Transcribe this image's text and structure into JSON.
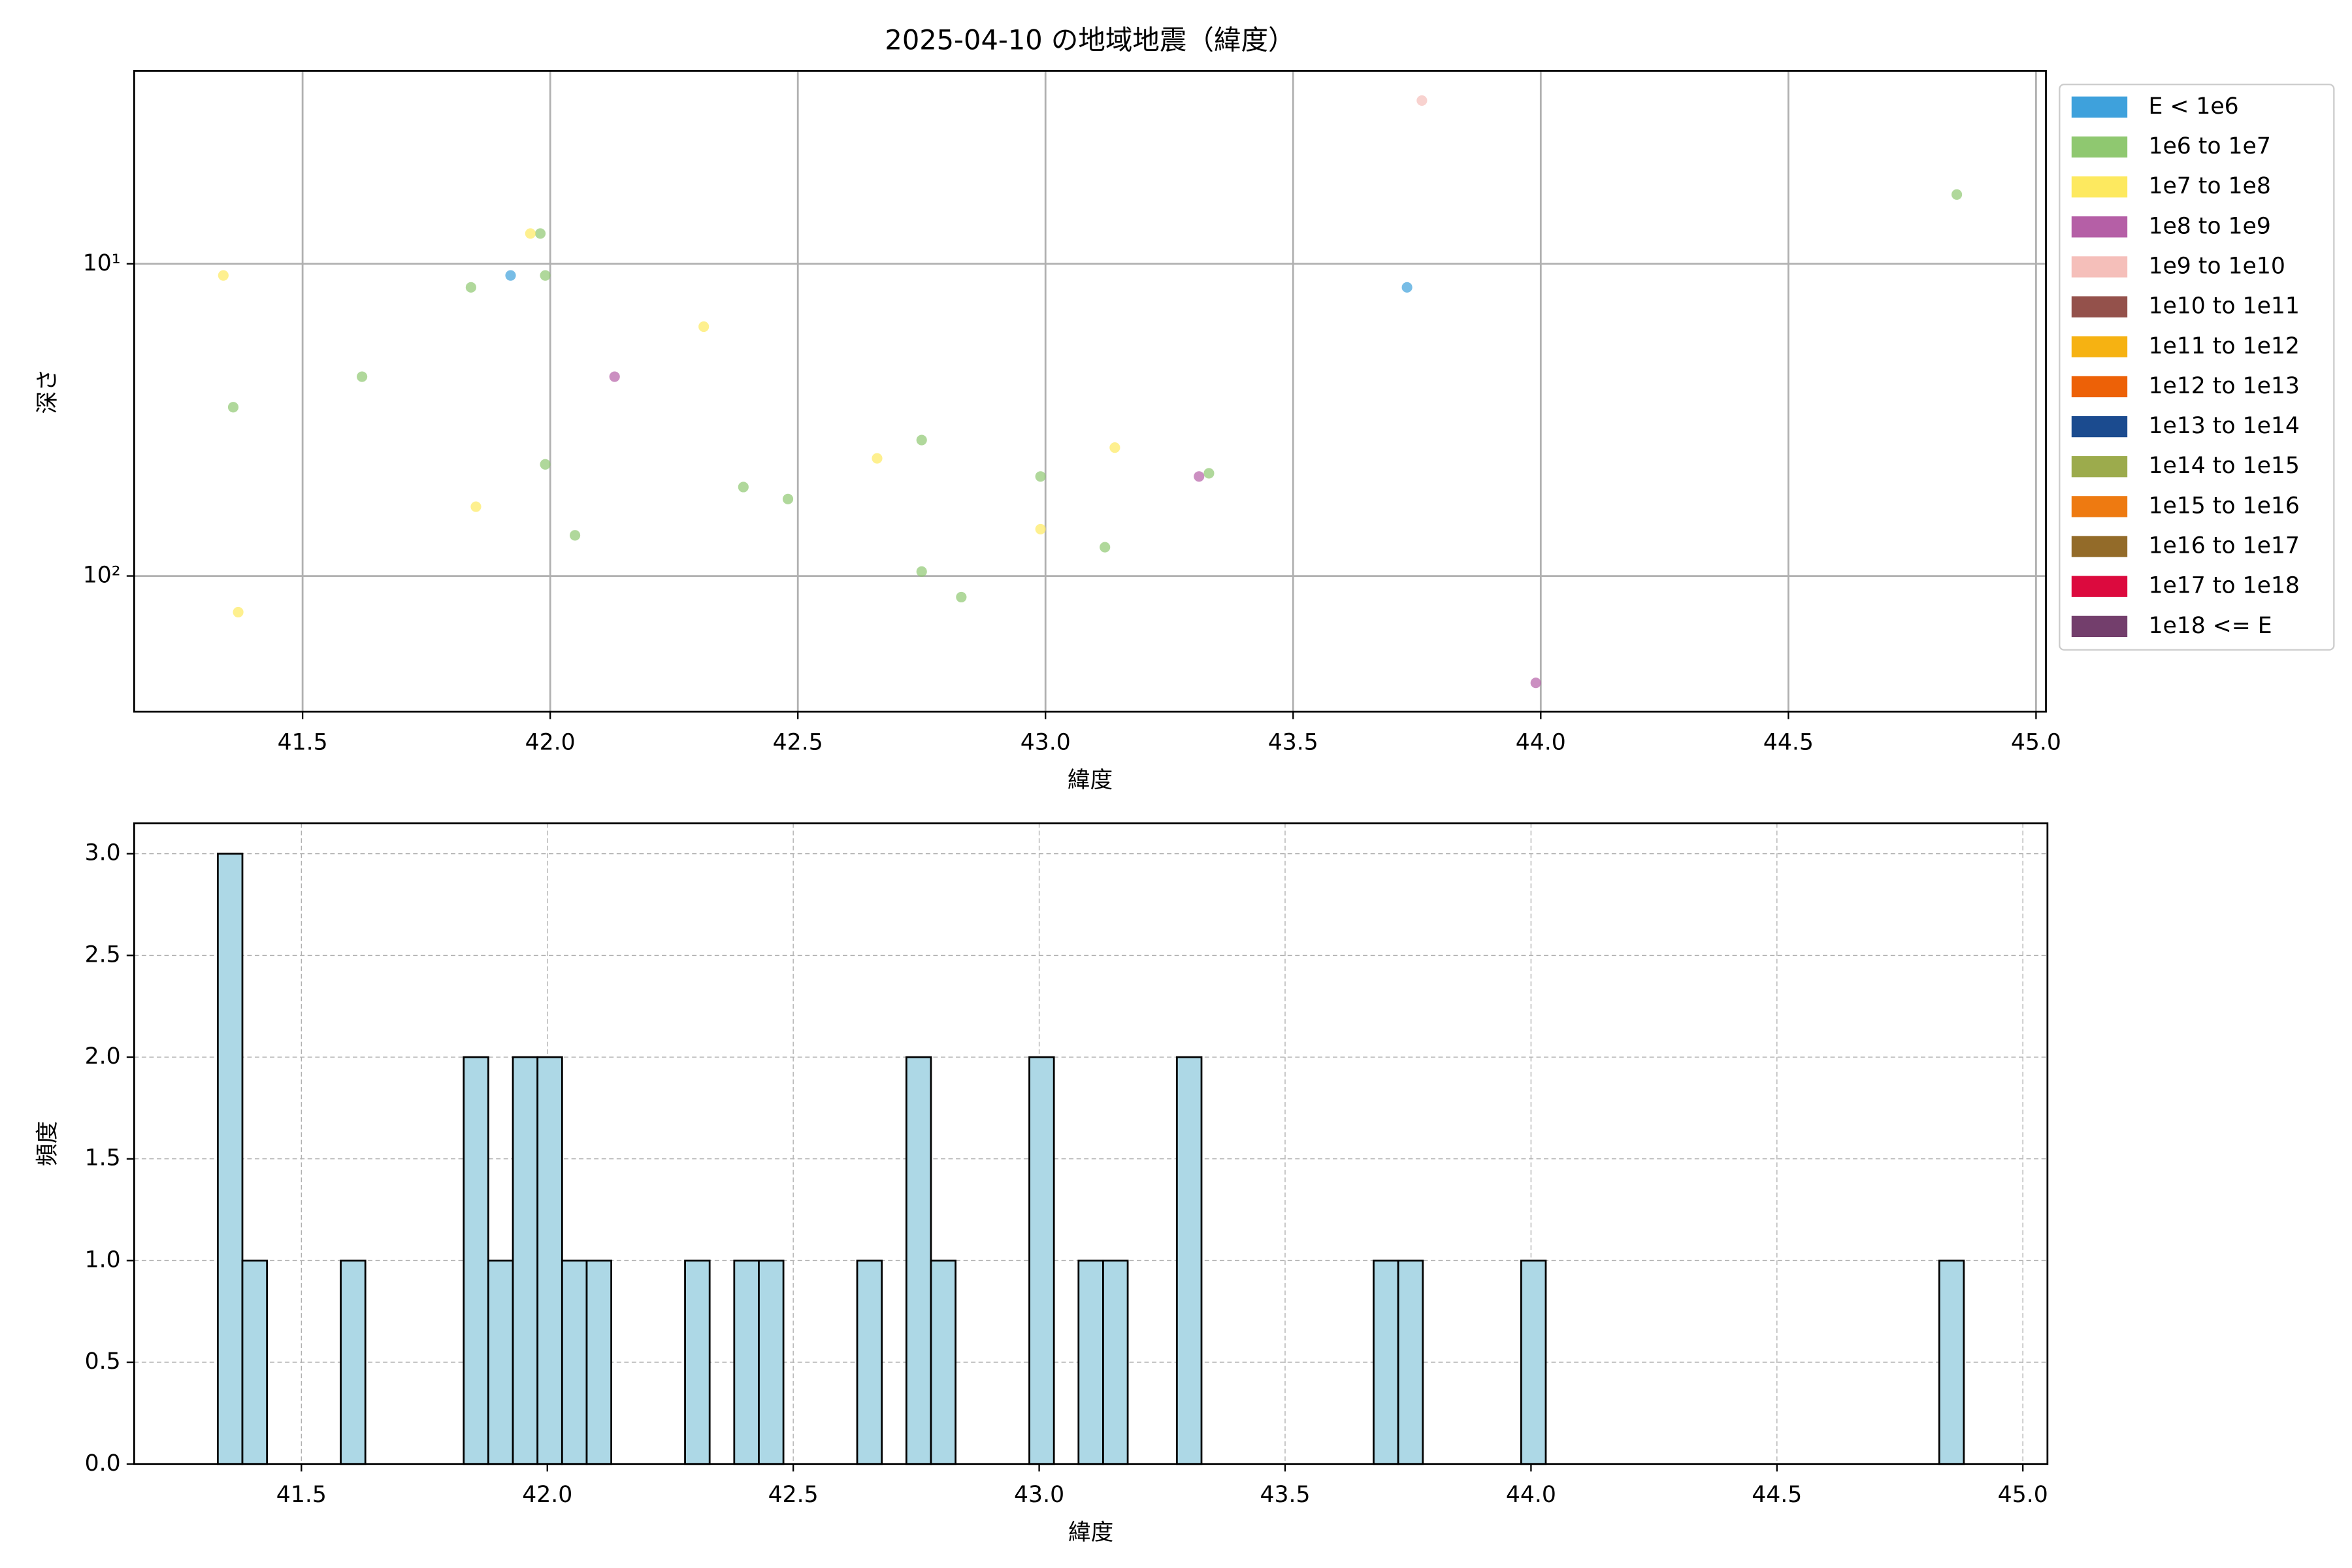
{
  "chart_data": [
    {
      "type": "scatter",
      "title": "2025-04-10 の地域地震（緯度）",
      "xlabel": "緯度",
      "ylabel": "深さ",
      "yscale": "log",
      "y_inverted": true,
      "grid": true,
      "grid_style": "solid",
      "legend": "outside-right",
      "xlim": [
        41.16,
        45.02
      ],
      "ylim": [
        2.41,
        272
      ],
      "xticks": [
        41.5,
        {
          "value": 42,
          "label": "42.0"
        },
        42.5,
        {
          "value": 43,
          "label": "43.0"
        },
        43.5,
        {
          "value": 44,
          "label": "44.0"
        },
        44.5,
        {
          "value": 45,
          "label": "45.0"
        }
      ],
      "yticks": [
        {
          "value": 10,
          "label": "10¹"
        },
        {
          "value": 100,
          "label": "10²"
        }
      ],
      "series": [
        {
          "name": "E < 1e6",
          "color": "#3ea1dc",
          "x": [
            41.92,
            43.73
          ],
          "values": [
            10.9,
            11.9
          ]
        },
        {
          "name": "1e6 to 1e7",
          "color": "#8fc870",
          "x": [
            41.98,
            41.84,
            41.99,
            41.62,
            41.36,
            41.99,
            42.05,
            42.39,
            42.48,
            42.75,
            42.99,
            42.75,
            42.83,
            43.12,
            43.33,
            44.84
          ],
          "values": [
            8.0,
            11.9,
            10.9,
            23.0,
            28.8,
            43.9,
            74.1,
            51.9,
            56.7,
            36.7,
            48.0,
            96.8,
            116.9,
            80.9,
            46.9,
            6.0
          ]
        },
        {
          "name": "1e7 to 1e8",
          "color": "#fde95f",
          "x": [
            41.34,
            41.96,
            42.31,
            41.85,
            41.37,
            42.66,
            43.14,
            42.99
          ],
          "values": [
            10.9,
            8.0,
            15.9,
            60.0,
            130.6,
            42.0,
            38.8,
            70.8
          ]
        },
        {
          "name": "1e8 to 1e9",
          "color": "#b55fa6",
          "x": [
            42.13,
            43.31,
            43.99
          ],
          "values": [
            23.0,
            48.0,
            220
          ]
        },
        {
          "name": "1e9 to 1e10",
          "color": "#f5bfba",
          "x": [
            43.76
          ],
          "values": [
            3.0
          ]
        },
        {
          "name": "1e10 to 1e11",
          "color": "#94514b",
          "x": [],
          "values": []
        },
        {
          "name": "1e11 to 1e12",
          "color": "#f6b212",
          "x": [],
          "values": []
        },
        {
          "name": "1e12 to 1e13",
          "color": "#ed6107",
          "x": [],
          "values": []
        },
        {
          "name": "1e13 to 1e14",
          "color": "#1b4b8f",
          "x": [],
          "values": []
        },
        {
          "name": "1e14 to 1e15",
          "color": "#9cab4c",
          "x": [],
          "values": []
        },
        {
          "name": "1e15 to 1e16",
          "color": "#ee7a11",
          "x": [],
          "values": []
        },
        {
          "name": "1e16 to 1e17",
          "color": "#936b29",
          "x": [],
          "values": []
        },
        {
          "name": "1e17 to 1e18",
          "color": "#dc0a3e",
          "x": [],
          "values": []
        },
        {
          "name": "1e18 <= E",
          "color": "#733e6c",
          "x": [],
          "values": []
        }
      ]
    },
    {
      "type": "histogram",
      "xlabel": "緯度",
      "ylabel": "頻度",
      "color": "#add8e6",
      "edgecolor": "#000000",
      "grid": true,
      "grid_style": "dashed",
      "xlim": [
        41.16,
        45.05
      ],
      "ylim": [
        0,
        3.15
      ],
      "xticks": [
        41.5,
        {
          "value": 42,
          "label": "42.0"
        },
        42.5,
        {
          "value": 43,
          "label": "43.0"
        },
        43.5,
        {
          "value": 44,
          "label": "44.0"
        },
        44.5,
        {
          "value": 45,
          "label": "45.0"
        }
      ],
      "yticks": [
        {
          "value": 0,
          "label": "0.0"
        },
        0.5,
        {
          "value": 1,
          "label": "1.0"
        },
        1.5,
        {
          "value": 2,
          "label": "2.0"
        },
        2.5,
        {
          "value": 3,
          "label": "3.0"
        }
      ],
      "bins": [
        41.33,
        41.38,
        41.43,
        41.48,
        41.53,
        41.58,
        41.63,
        41.68,
        41.73,
        41.78,
        41.83,
        41.88,
        41.93,
        41.98,
        42.03,
        42.08,
        42.13,
        42.18,
        42.23,
        42.28,
        42.33,
        42.38,
        42.43,
        42.48,
        42.53,
        42.58,
        42.63,
        42.68,
        42.73,
        42.78,
        42.83,
        42.88,
        42.93,
        42.98,
        43.03,
        43.08,
        43.13,
        43.18,
        43.23,
        43.28,
        43.33,
        43.38,
        43.43,
        43.48,
        43.53,
        43.58,
        43.63,
        43.68,
        43.73,
        43.78,
        43.83,
        43.88,
        43.93,
        43.98,
        44.03,
        44.08,
        44.13,
        44.18,
        44.23,
        44.28,
        44.33,
        44.38,
        44.43,
        44.48,
        44.53,
        44.58,
        44.63,
        44.68,
        44.73,
        44.78,
        44.83,
        44.88
      ],
      "values": [
        3,
        1,
        0,
        0,
        0,
        1,
        0,
        0,
        0,
        0,
        2,
        1,
        2,
        2,
        1,
        1,
        0,
        0,
        0,
        1,
        0,
        1,
        1,
        0,
        0,
        0,
        1,
        0,
        2,
        1,
        0,
        0,
        0,
        2,
        0,
        1,
        1,
        0,
        0,
        2,
        0,
        0,
        0,
        0,
        0,
        0,
        0,
        1,
        1,
        0,
        0,
        0,
        0,
        1,
        0,
        0,
        0,
        0,
        0,
        0,
        0,
        0,
        0,
        0,
        0,
        0,
        0,
        0,
        0,
        0,
        1
      ]
    }
  ]
}
